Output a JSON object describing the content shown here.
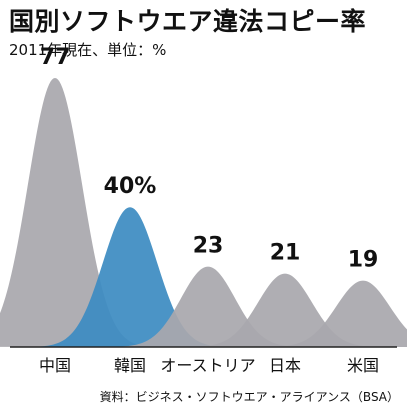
{
  "chart_data": {
    "type": "area",
    "title": "国別ソフトウエア違法コピー率",
    "subtitle": "2011年現在、単位：%",
    "categories": [
      "中国",
      "韓国",
      "オーストリア",
      "日本",
      "米国"
    ],
    "values": [
      77,
      40,
      23,
      21,
      19
    ],
    "value_labels": [
      "77",
      "40%",
      "23",
      "21",
      "19"
    ],
    "ylim": [
      0,
      85
    ],
    "highlight_index": 1,
    "colors": {
      "default": "#a9a8ad",
      "highlight": "#3d8cc2",
      "baseline": "#222222"
    },
    "source": "資料：ビジネス・ソフトウエア・アライアンス（BSA）"
  }
}
